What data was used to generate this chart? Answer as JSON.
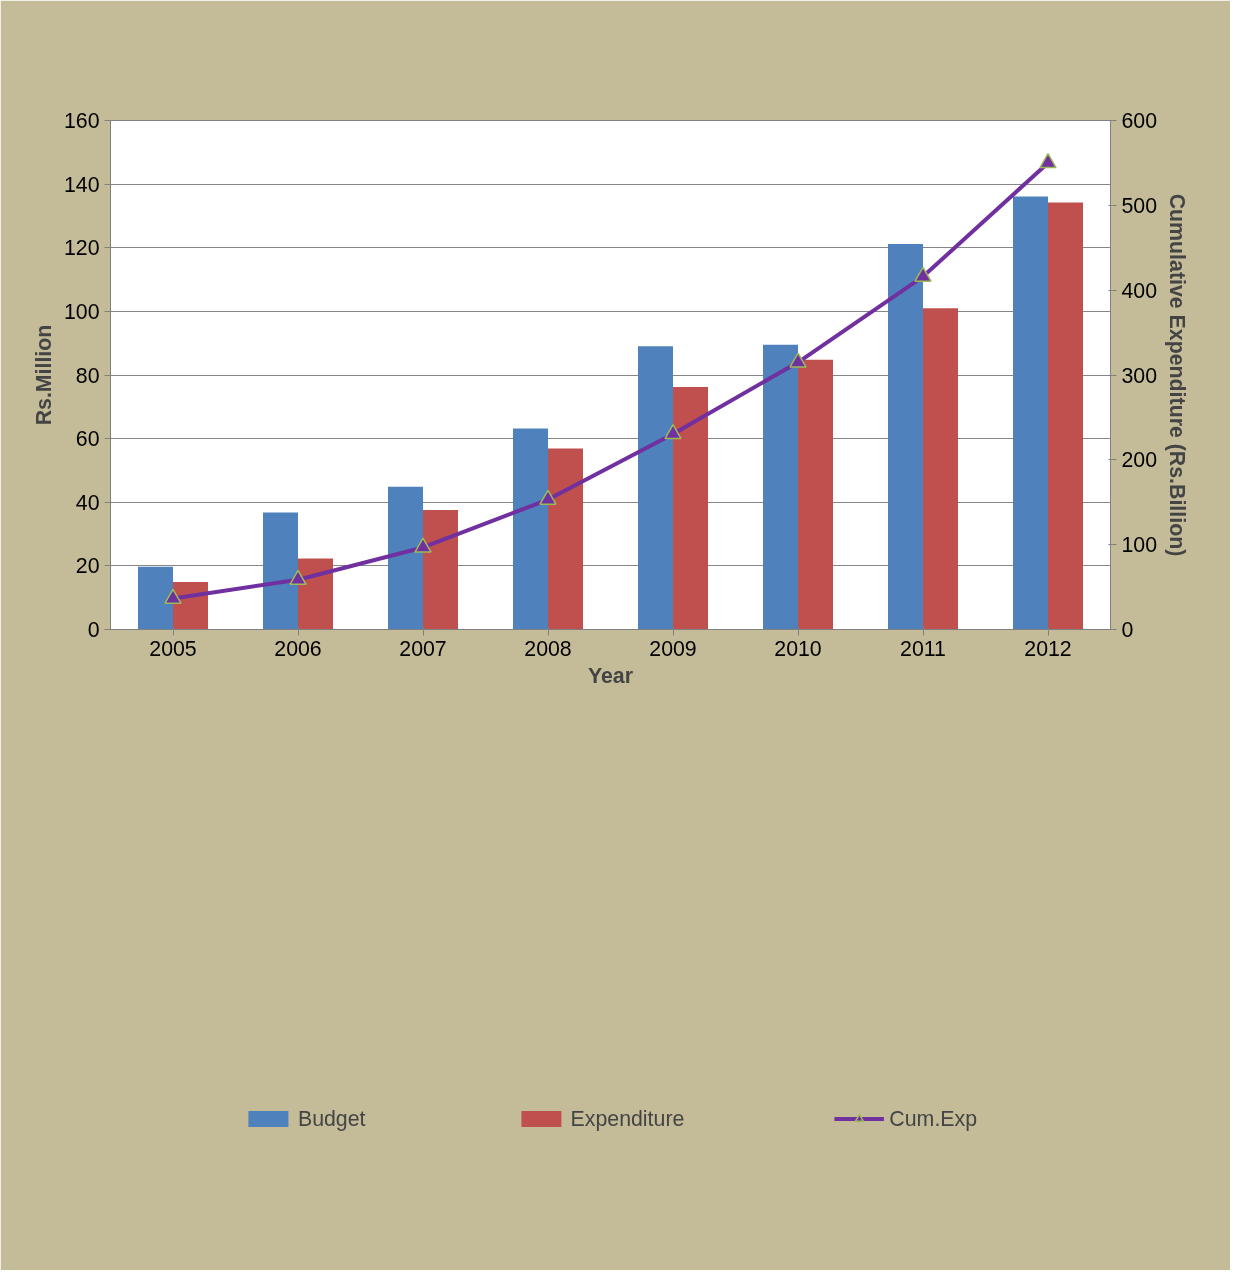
{
  "chart_data": {
    "type": "bar",
    "xlabel": "Year",
    "ylabel": "Rs.Million",
    "y2label": "Cumulative Expenditure (Rs.Billion)",
    "categories": [
      "2005",
      "2006",
      "2007",
      "2008",
      "2009",
      "2010",
      "2011",
      "2012"
    ],
    "series": [
      {
        "name": "Budget",
        "color": "#4f81bd",
        "values": [
          19.7,
          36.8,
          44.9,
          63.2,
          89.0,
          89.5,
          121.2,
          136.1
        ]
      },
      {
        "name": "Expenditure",
        "color": "#c0504d",
        "values": [
          14.9,
          22.3,
          37.6,
          56.9,
          76.2,
          84.8,
          101.0,
          134.2
        ]
      },
      {
        "name": "Cum.Exp",
        "type": "line",
        "axis": "y2",
        "color": "#7030a0",
        "marker": "triangle",
        "values": [
          36.5,
          58.7,
          96.7,
          153.2,
          230.5,
          315,
          416,
          550
        ]
      }
    ],
    "ylim": [
      0,
      160
    ],
    "yticks": [
      0,
      20,
      40,
      60,
      80,
      100,
      120,
      140,
      160
    ],
    "y2lim": [
      0,
      600
    ],
    "y2ticks": [
      0,
      100,
      200,
      300,
      400,
      500,
      600
    ],
    "grid": "y",
    "legend": "bottom"
  }
}
